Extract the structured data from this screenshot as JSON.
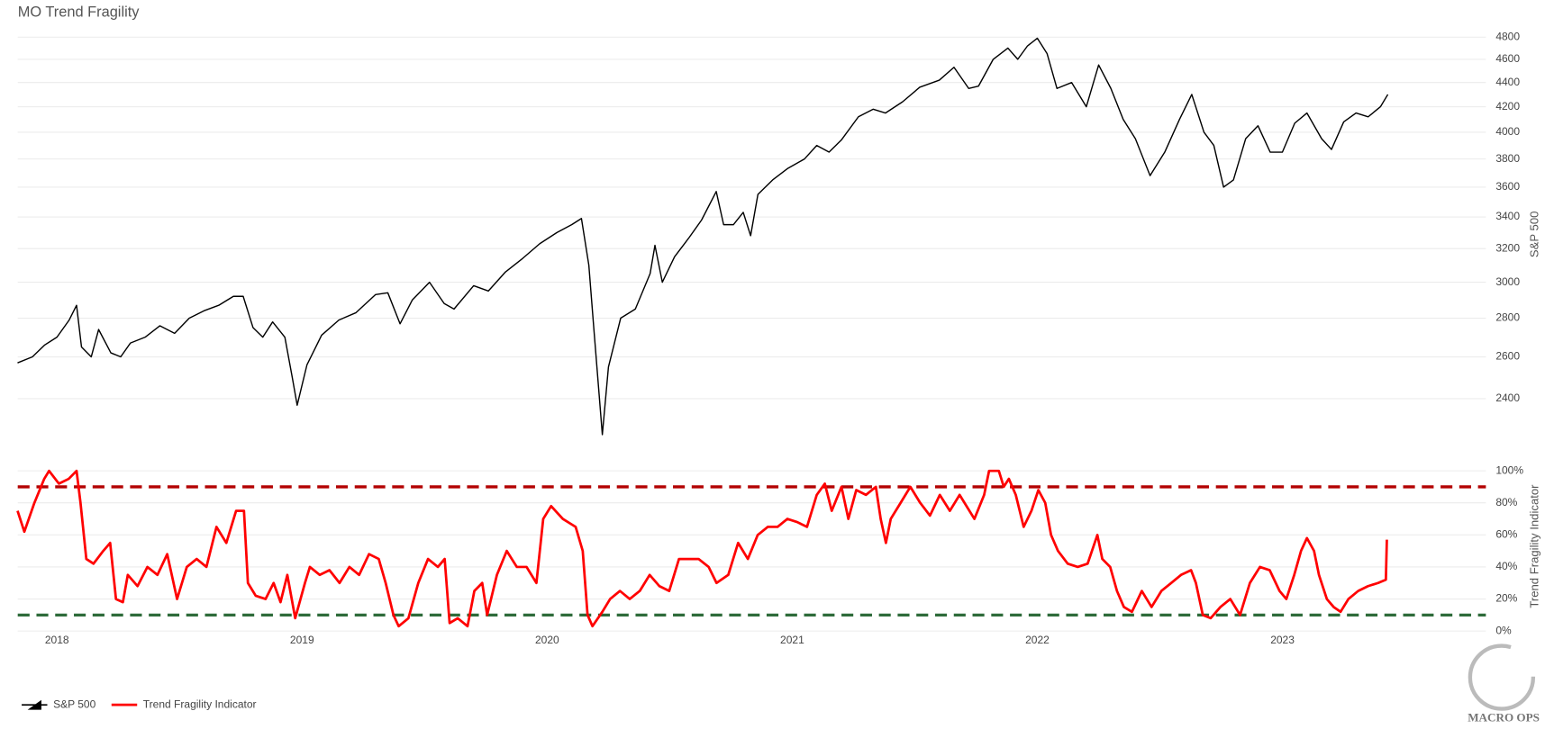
{
  "chart_data": [
    {
      "type": "line",
      "title": "MO Trend Fragility",
      "ylabel": "S&P 500",
      "log_scale": true,
      "grid": true,
      "xlim": [
        2017.84,
        2023.83
      ],
      "ylim": [
        2200,
        4870
      ],
      "yticks": [
        2400,
        2600,
        2800,
        3000,
        3200,
        3400,
        3600,
        3800,
        4000,
        4200,
        4400,
        4600,
        4800
      ],
      "x": [
        2017.839,
        2017.9,
        2017.95,
        2018.0,
        2018.05,
        2018.08,
        2018.1,
        2018.14,
        2018.17,
        2018.22,
        2018.26,
        2018.3,
        2018.36,
        2018.42,
        2018.48,
        2018.54,
        2018.6,
        2018.66,
        2018.72,
        2018.76,
        2018.8,
        2018.84,
        2018.88,
        2018.93,
        2018.96,
        2018.98,
        2019.02,
        2019.08,
        2019.15,
        2019.22,
        2019.3,
        2019.35,
        2019.4,
        2019.45,
        2019.52,
        2019.58,
        2019.62,
        2019.7,
        2019.76,
        2019.83,
        2019.9,
        2019.97,
        2020.04,
        2020.1,
        2020.14,
        2020.17,
        2020.19,
        2020.21,
        2020.225,
        2020.25,
        2020.3,
        2020.36,
        2020.42,
        2020.44,
        2020.47,
        2020.52,
        2020.58,
        2020.63,
        2020.69,
        2020.72,
        2020.76,
        2020.8,
        2020.83,
        2020.86,
        2020.92,
        2020.98,
        2021.05,
        2021.1,
        2021.15,
        2021.2,
        2021.27,
        2021.33,
        2021.38,
        2021.45,
        2021.52,
        2021.6,
        2021.66,
        2021.72,
        2021.76,
        2021.82,
        2021.88,
        2021.92,
        2021.96,
        2022.0,
        2022.04,
        2022.08,
        2022.14,
        2022.2,
        2022.25,
        2022.3,
        2022.35,
        2022.4,
        2022.46,
        2022.52,
        2022.58,
        2022.63,
        2022.68,
        2022.72,
        2022.76,
        2022.8,
        2022.85,
        2022.9,
        2022.95,
        2023.0,
        2023.05,
        2023.1,
        2023.16,
        2023.2,
        2023.25,
        2023.3,
        2023.35,
        2023.4,
        2023.43
      ],
      "series": [
        {
          "name": "S&P 500",
          "color": "#000000",
          "values": [
            2570,
            2600,
            2660,
            2700,
            2790,
            2870,
            2650,
            2600,
            2740,
            2620,
            2600,
            2670,
            2700,
            2760,
            2720,
            2800,
            2840,
            2870,
            2920,
            2920,
            2750,
            2700,
            2780,
            2700,
            2500,
            2370,
            2560,
            2710,
            2790,
            2830,
            2930,
            2940,
            2770,
            2900,
            3000,
            2880,
            2850,
            2980,
            2950,
            3060,
            3140,
            3230,
            3300,
            3350,
            3390,
            3100,
            2750,
            2450,
            2240,
            2550,
            2800,
            2850,
            3050,
            3220,
            3000,
            3150,
            3270,
            3380,
            3570,
            3350,
            3350,
            3430,
            3280,
            3550,
            3650,
            3730,
            3800,
            3900,
            3850,
            3940,
            4120,
            4180,
            4150,
            4240,
            4360,
            4420,
            4530,
            4350,
            4370,
            4600,
            4700,
            4600,
            4720,
            4790,
            4650,
            4350,
            4400,
            4200,
            4550,
            4350,
            4100,
            3950,
            3680,
            3850,
            4100,
            4300,
            4000,
            3900,
            3600,
            3650,
            3950,
            4050,
            3850,
            3850,
            4070,
            4150,
            3950,
            3870,
            4080,
            4150,
            4120,
            4200,
            4300
          ]
        }
      ]
    },
    {
      "type": "line",
      "ylabel": "Trend Fragility Indicator",
      "grid": true,
      "xlim": [
        2017.84,
        2023.83
      ],
      "ylim": [
        0,
        102
      ],
      "xticks": [
        2018,
        2019,
        2020,
        2021,
        2022,
        2023
      ],
      "yticks": [
        {
          "value": 0,
          "label": "0%"
        },
        {
          "value": 20,
          "label": "20%"
        },
        {
          "value": 40,
          "label": "40%"
        },
        {
          "value": 60,
          "label": "60%"
        },
        {
          "value": 80,
          "label": "80%"
        },
        {
          "value": 100,
          "label": "100%"
        }
      ],
      "reference_lines": [
        {
          "value": 90,
          "color": "#b30000"
        },
        {
          "value": 10,
          "color": "#2e6b3a"
        }
      ],
      "x": [
        2017.839,
        2017.867,
        2017.908,
        2017.948,
        2017.968,
        2018.008,
        2018.048,
        2018.08,
        2018.096,
        2018.12,
        2018.149,
        2018.189,
        2018.217,
        2018.241,
        2018.269,
        2018.289,
        2018.329,
        2018.369,
        2018.41,
        2018.45,
        2018.49,
        2018.53,
        2018.57,
        2018.61,
        2018.651,
        2018.691,
        2018.731,
        2018.763,
        2018.779,
        2018.811,
        2018.851,
        2018.884,
        2018.912,
        2018.94,
        2018.972,
        2019.012,
        2019.032,
        2019.072,
        2019.112,
        2019.153,
        2019.193,
        2019.233,
        2019.273,
        2019.313,
        2019.341,
        2019.373,
        2019.394,
        2019.434,
        2019.474,
        2019.514,
        2019.554,
        2019.582,
        2019.602,
        2019.635,
        2019.675,
        2019.703,
        2019.735,
        2019.755,
        2019.795,
        2019.835,
        2019.876,
        2019.916,
        2019.956,
        2019.984,
        2020.016,
        2020.064,
        2020.116,
        2020.145,
        2020.165,
        2020.185,
        2020.225,
        2020.257,
        2020.297,
        2020.337,
        2020.378,
        2020.418,
        2020.458,
        2020.498,
        2020.538,
        2020.578,
        2020.618,
        2020.659,
        2020.691,
        2020.739,
        2020.779,
        2020.819,
        2020.859,
        2020.9,
        2020.94,
        2020.98,
        2021.02,
        2021.06,
        2021.1,
        2021.133,
        2021.161,
        2021.201,
        2021.229,
        2021.261,
        2021.301,
        2021.341,
        2021.361,
        2021.382,
        2021.402,
        2021.442,
        2021.482,
        2021.522,
        2021.562,
        2021.602,
        2021.643,
        2021.683,
        2021.743,
        2021.783,
        2021.803,
        2021.843,
        2021.863,
        2021.884,
        2021.912,
        2021.944,
        2021.976,
        2022.004,
        2022.032,
        2022.056,
        2022.084,
        2022.124,
        2022.165,
        2022.205,
        2022.245,
        2022.265,
        2022.297,
        2022.325,
        2022.353,
        2022.386,
        2022.426,
        2022.466,
        2022.506,
        2022.546,
        2022.586,
        2022.627,
        2022.647,
        2022.675,
        2022.707,
        2022.747,
        2022.787,
        2022.827,
        2022.867,
        2022.908,
        2022.948,
        2022.988,
        2023.016,
        2023.048,
        2023.076,
        2023.1,
        2023.129,
        2023.149,
        2023.181,
        2023.209,
        2023.237,
        2023.269,
        2023.309,
        2023.349,
        2023.39,
        2023.422,
        2023.426
      ],
      "series": [
        {
          "name": "Trend Fragility Indicator",
          "color": "#ff0000",
          "values": [
            75,
            62,
            80,
            95,
            100,
            92,
            95,
            100,
            80,
            45,
            42,
            50,
            55,
            20,
            18,
            35,
            28,
            40,
            35,
            48,
            20,
            40,
            45,
            40,
            65,
            55,
            75,
            75,
            30,
            22,
            20,
            30,
            18,
            35,
            8,
            30,
            40,
            35,
            38,
            30,
            40,
            35,
            48,
            45,
            30,
            10,
            3,
            8,
            30,
            45,
            40,
            45,
            5,
            8,
            3,
            25,
            30,
            10,
            35,
            50,
            40,
            40,
            30,
            70,
            78,
            70,
            65,
            50,
            10,
            3,
            12,
            20,
            25,
            20,
            25,
            35,
            28,
            25,
            45,
            45,
            45,
            40,
            30,
            35,
            55,
            45,
            60,
            65,
            65,
            70,
            68,
            65,
            85,
            92,
            75,
            90,
            70,
            88,
            85,
            90,
            70,
            55,
            70,
            80,
            90,
            80,
            72,
            85,
            75,
            85,
            70,
            85,
            100,
            100,
            90,
            95,
            85,
            65,
            75,
            88,
            80,
            60,
            50,
            42,
            40,
            42,
            60,
            45,
            40,
            25,
            15,
            12,
            25,
            15,
            25,
            30,
            35,
            38,
            30,
            10,
            8,
            15,
            20,
            10,
            30,
            40,
            38,
            25,
            20,
            35,
            50,
            58,
            50,
            35,
            20,
            15,
            12,
            20,
            25,
            28,
            30,
            32,
            57
          ]
        }
      ]
    }
  ],
  "legend_position": "bottom-left",
  "watermark": "MACRO OPS"
}
